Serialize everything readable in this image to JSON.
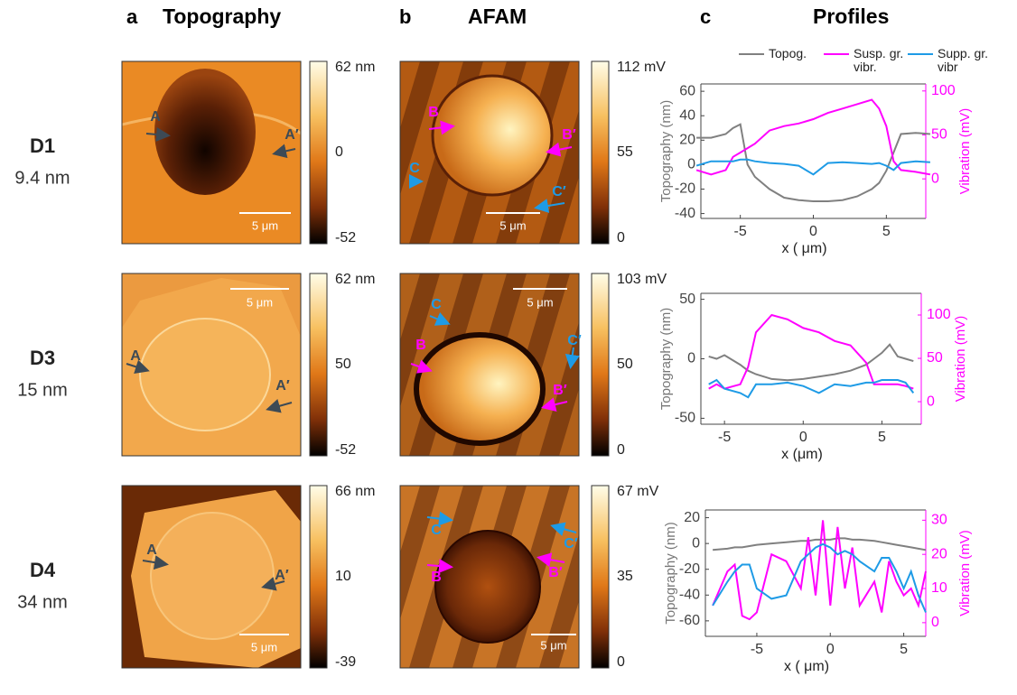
{
  "header": {
    "panels": [
      {
        "letter": "a",
        "title": "Topography"
      },
      {
        "letter": "b",
        "title": "AFAM"
      },
      {
        "letter": "c",
        "title": "Profiles"
      }
    ]
  },
  "samples": [
    {
      "name": "D1",
      "thickness": "9.4 nm",
      "topography": {
        "colorbar": [
          "62 nm",
          "0",
          "-52"
        ],
        "markers": [
          "A",
          "A′"
        ],
        "scale_bar": "5 μm"
      },
      "afam": {
        "colorbar": [
          "112 mV",
          "55",
          "0"
        ],
        "markers": [
          "B",
          "B′",
          "C",
          "C′"
        ],
        "scale_bar": "5 μm"
      }
    },
    {
      "name": "D3",
      "thickness": "15 nm",
      "topography": {
        "colorbar": [
          "62 nm",
          "50",
          "-52"
        ],
        "markers": [
          "A",
          "A′"
        ],
        "scale_bar": "5 μm"
      },
      "afam": {
        "colorbar": [
          "103 mV",
          "50",
          "0"
        ],
        "markers": [
          "B",
          "B′",
          "C",
          "C′"
        ],
        "scale_bar": "5 μm"
      }
    },
    {
      "name": "D4",
      "thickness": "34 nm",
      "topography": {
        "colorbar": [
          "66 nm",
          "10",
          "-39"
        ],
        "markers": [
          "A",
          "A′"
        ],
        "scale_bar": "5 μm"
      },
      "afam": {
        "colorbar": [
          "67  mV",
          "35",
          "0"
        ],
        "markers": [
          "B",
          "B′",
          "C",
          "C′"
        ],
        "scale_bar": "5 μm"
      }
    }
  ],
  "chart_data": [
    {
      "type": "line",
      "xlabel": "x ( μm)",
      "ylabel": "Topography (nm)",
      "y2label": "Vibration (mV)",
      "legend": "top",
      "x": [
        -8,
        -7,
        -6,
        -5.5,
        -5,
        -4.5,
        -4,
        -3,
        -2,
        -1,
        0,
        1,
        2,
        3,
        4,
        4.5,
        5,
        5.5,
        6,
        7,
        8
      ],
      "xlim": [
        -7.7,
        7.7
      ],
      "xticks": [
        -5,
        0,
        5
      ],
      "ylim": [
        -44,
        66
      ],
      "yticks": [
        -40,
        -20,
        0,
        20,
        40,
        60
      ],
      "y2lim": [
        -45,
        108
      ],
      "y2ticks": [
        0,
        50,
        100
      ],
      "series": [
        {
          "name": "Topog.",
          "color": "#808080",
          "values": [
            22,
            22,
            25,
            30,
            33,
            0,
            -10,
            -20,
            -27,
            -29,
            -30,
            -30,
            -29,
            -26,
            -20,
            -15,
            -5,
            10,
            25,
            26,
            25
          ]
        },
        {
          "name": "Susp. gr. vibr.",
          "color": "#ff00ff",
          "axis": "y2",
          "values": [
            10,
            5,
            10,
            25,
            30,
            35,
            40,
            55,
            60,
            63,
            68,
            75,
            80,
            85,
            90,
            80,
            60,
            20,
            10,
            8,
            5
          ]
        },
        {
          "name": "Supp. gr. vibr",
          "color": "#1e9be6",
          "axis": "y2",
          "values": [
            15,
            20,
            20,
            20,
            22,
            22,
            20,
            18,
            17,
            15,
            5,
            18,
            19,
            18,
            17,
            18,
            15,
            10,
            18,
            20,
            19
          ]
        }
      ]
    },
    {
      "type": "line",
      "xlabel": "x (μm)",
      "ylabel": "Topography (nm)",
      "y2label": "Vibration (mV)",
      "x": [
        -6,
        -5.5,
        -5,
        -4,
        -3.5,
        -3,
        -2,
        -1,
        0,
        1,
        2,
        3,
        4,
        4.5,
        5,
        5.5,
        6,
        6.5,
        7
      ],
      "xlim": [
        -6.5,
        7.5
      ],
      "xticks": [
        -5,
        0,
        5
      ],
      "ylim": [
        -55,
        55
      ],
      "yticks": [
        -50,
        0,
        50
      ],
      "y2lim": [
        -26,
        125
      ],
      "y2ticks": [
        0,
        50,
        100
      ],
      "series": [
        {
          "color": "#808080",
          "values": [
            2,
            0,
            3,
            -5,
            -10,
            -13,
            -17,
            -18,
            -17,
            -15,
            -13,
            -10,
            -5,
            0,
            5,
            12,
            2,
            0,
            -2
          ]
        },
        {
          "color": "#ff00ff",
          "axis": "y2",
          "values": [
            15,
            20,
            15,
            20,
            40,
            80,
            100,
            95,
            85,
            80,
            70,
            65,
            45,
            20,
            20,
            20,
            20,
            18,
            15
          ]
        },
        {
          "color": "#1e9be6",
          "axis": "y2",
          "values": [
            20,
            25,
            15,
            10,
            5,
            20,
            20,
            22,
            18,
            10,
            20,
            18,
            22,
            22,
            25,
            25,
            25,
            22,
            10
          ]
        }
      ]
    },
    {
      "type": "line",
      "xlabel": "x ( μm)",
      "ylabel": "Topography (nm)",
      "y2label": "Vibration (mV)",
      "x": [
        -8,
        -7,
        -6.5,
        -6,
        -5.5,
        -5,
        -4,
        -3,
        -2,
        -1.5,
        -1,
        -0.5,
        0,
        0.5,
        1,
        1.5,
        2,
        3,
        3.5,
        4,
        4.5,
        5,
        5.5,
        6,
        6.5
      ],
      "xlim": [
        -8.5,
        6.5
      ],
      "xticks": [
        -5,
        0,
        5
      ],
      "ylim": [
        -72,
        26
      ],
      "yticks": [
        -60,
        -40,
        -20,
        0,
        20
      ],
      "y2lim": [
        -4,
        33
      ],
      "y2ticks": [
        0,
        10,
        20,
        30
      ],
      "series": [
        {
          "color": "#808080",
          "values": [
            -5,
            -4,
            -3,
            -3,
            -2,
            -1,
            0,
            1,
            2,
            2,
            3,
            3,
            3,
            4,
            4,
            3,
            3,
            2,
            1,
            0,
            -1,
            -2,
            -3,
            -4,
            -5
          ]
        },
        {
          "color": "#ff00ff",
          "axis": "y2",
          "values": [
            5,
            15,
            17,
            2,
            1,
            3,
            20,
            18,
            10,
            25,
            8,
            30,
            5,
            28,
            10,
            22,
            5,
            12,
            3,
            18,
            12,
            8,
            10,
            5,
            15
          ]
        },
        {
          "color": "#1e9be6",
          "axis": "y2",
          "values": [
            5,
            12,
            15,
            17,
            17,
            10,
            7,
            8,
            18,
            20,
            22,
            23,
            22,
            20,
            21,
            20,
            18,
            15,
            19,
            19,
            15,
            10,
            15,
            8,
            3
          ]
        }
      ]
    }
  ]
}
